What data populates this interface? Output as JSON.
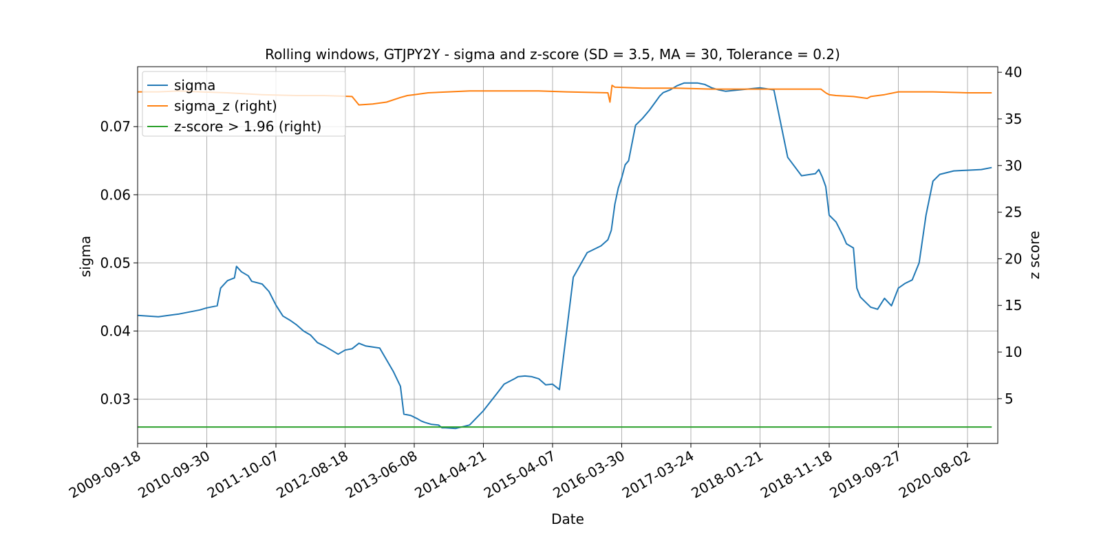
{
  "chart_data": {
    "type": "line",
    "title": "Rolling windows, GTJPY2Y - sigma and z-score (SD = 3.5, MA = 30, Tolerance  = 0.2)",
    "xlabel": "Date",
    "ylabel": "sigma",
    "y2label": "z score",
    "x_tick_labels": [
      "2009-09-18",
      "2010-09-30",
      "2011-10-07",
      "2012-08-18",
      "2013-06-08",
      "2014-04-21",
      "2015-04-07",
      "2016-03-30",
      "2017-03-24",
      "2018-01-21",
      "2018-11-18",
      "2019-09-27",
      "2020-08-02"
    ],
    "y_ticks": [
      0.03,
      0.04,
      0.05,
      0.06,
      0.07
    ],
    "y_tick_labels": [
      "0.03",
      "0.04",
      "0.05",
      "0.06",
      "0.07"
    ],
    "y2_ticks": [
      5,
      10,
      15,
      20,
      25,
      30,
      35,
      40
    ],
    "y2_tick_labels": [
      "5",
      "10",
      "15",
      "20",
      "25",
      "30",
      "35",
      "40"
    ],
    "ylim": [
      0.0235,
      0.0788
    ],
    "y2lim": [
      0.2,
      40.6
    ],
    "grid": true,
    "legend_position": "upper-left",
    "colors": {
      "sigma": "#1f77b4",
      "sigma_z": "#ff7f0e",
      "zscore": "#2ca02c",
      "grid": "#b0b0b0"
    },
    "series": [
      {
        "name": "sigma",
        "axis": "left",
        "x": [
          0,
          0.3,
          0.6,
          0.9,
          1.0,
          1.1,
          1.15,
          1.2,
          1.3,
          1.4,
          1.43,
          1.5,
          1.6,
          1.65,
          1.8,
          1.9,
          2.0,
          2.1,
          2.2,
          2.3,
          2.4,
          2.5,
          2.6,
          2.7,
          2.8,
          2.9,
          3.0,
          3.1,
          3.2,
          3.3,
          3.5,
          3.7,
          3.8,
          3.85,
          3.95,
          4.05,
          4.1,
          4.15,
          4.25,
          4.35,
          4.4,
          4.45,
          4.6,
          4.8,
          5.0,
          5.2,
          5.3,
          5.45,
          5.5,
          5.6,
          5.7,
          5.8,
          5.9,
          6.0,
          6.1,
          6.3,
          6.5,
          6.7,
          6.8,
          6.85,
          6.9,
          6.95,
          7.0,
          7.05,
          7.1,
          7.2,
          7.3,
          7.4,
          7.5,
          7.55,
          7.6,
          7.7,
          7.8,
          7.9,
          8.0,
          8.1,
          8.2,
          8.3,
          8.4,
          8.5,
          8.6,
          8.8,
          9.0,
          9.2,
          9.4,
          9.6,
          9.8,
          9.85,
          9.9,
          9.95,
          10.0,
          10.1,
          10.2,
          10.25,
          10.35,
          10.4,
          10.45,
          10.55,
          10.6,
          10.7,
          10.8,
          10.9,
          11.0,
          11.1,
          11.2,
          11.3,
          11.4,
          11.5,
          11.6,
          11.8,
          12.0,
          12.2,
          12.35
        ],
        "values": [
          0.0423,
          0.0421,
          0.0425,
          0.0431,
          0.0434,
          0.0436,
          0.0437,
          0.0463,
          0.0474,
          0.0478,
          0.0495,
          0.0487,
          0.0481,
          0.0473,
          0.0469,
          0.0458,
          0.0438,
          0.0422,
          0.0416,
          0.0409,
          0.04,
          0.0394,
          0.0383,
          0.0378,
          0.0372,
          0.0366,
          0.0372,
          0.0374,
          0.0382,
          0.0378,
          0.0375,
          0.034,
          0.0319,
          0.0278,
          0.0276,
          0.0271,
          0.0268,
          0.0266,
          0.0263,
          0.0262,
          0.0258,
          0.0258,
          0.0257,
          0.0262,
          0.0283,
          0.0309,
          0.0322,
          0.033,
          0.0333,
          0.0334,
          0.0333,
          0.033,
          0.0321,
          0.0322,
          0.0314,
          0.0479,
          0.0515,
          0.0525,
          0.0534,
          0.0548,
          0.0586,
          0.061,
          0.0625,
          0.0644,
          0.065,
          0.0702,
          0.0712,
          0.0724,
          0.0738,
          0.0745,
          0.075,
          0.0754,
          0.076,
          0.0764,
          0.0764,
          0.0764,
          0.0762,
          0.0757,
          0.0754,
          0.0752,
          0.0753,
          0.0755,
          0.0757,
          0.0754,
          0.0655,
          0.0628,
          0.0631,
          0.0637,
          0.0626,
          0.0612,
          0.057,
          0.056,
          0.054,
          0.0528,
          0.0522,
          0.0463,
          0.045,
          0.044,
          0.0435,
          0.0432,
          0.0448,
          0.0437,
          0.0463,
          0.047,
          0.0475,
          0.05,
          0.057,
          0.062,
          0.063,
          0.0635,
          0.0636,
          0.0637,
          0.064
        ]
      },
      {
        "name": "sigma_z (right)",
        "axis": "right",
        "x": [
          0,
          0.3,
          0.6,
          0.9,
          1.3,
          1.8,
          2.3,
          2.7,
          3.1,
          3.2,
          3.4,
          3.6,
          3.8,
          3.9,
          4.0,
          4.2,
          4.5,
          4.8,
          5.3,
          5.8,
          6.2,
          6.8,
          6.83,
          6.86,
          6.9,
          7.3,
          7.8,
          8.3,
          8.8,
          9.3,
          9.8,
          9.88,
          9.95,
          10.0,
          10.1,
          10.35,
          10.55,
          10.6,
          10.8,
          11.0,
          11.5,
          12.0,
          12.35
        ],
        "values": [
          37.9,
          37.9,
          38.0,
          37.9,
          37.8,
          37.6,
          37.5,
          37.5,
          37.4,
          36.5,
          36.6,
          36.8,
          37.3,
          37.5,
          37.6,
          37.8,
          37.9,
          38.0,
          38.0,
          38.0,
          37.9,
          37.8,
          36.8,
          38.6,
          38.4,
          38.3,
          38.3,
          38.2,
          38.2,
          38.2,
          38.2,
          38.2,
          37.8,
          37.6,
          37.5,
          37.4,
          37.2,
          37.4,
          37.6,
          37.9,
          37.9,
          37.8,
          37.8
        ]
      },
      {
        "name": "z-score > 1.96 (right)",
        "axis": "right",
        "x": [
          0,
          12.35
        ],
        "values": [
          1.96,
          1.96
        ]
      }
    ]
  }
}
